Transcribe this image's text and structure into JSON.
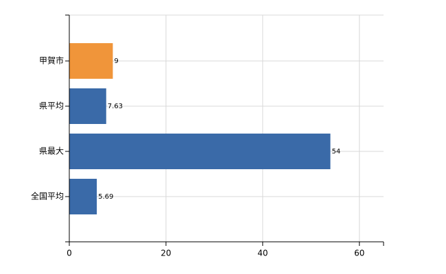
{
  "chart_data": {
    "type": "bar",
    "orientation": "horizontal",
    "categories": [
      "甲賀市",
      "県平均",
      "県最大",
      "全国平均"
    ],
    "values": [
      9,
      7.63,
      54,
      5.69
    ],
    "colors": [
      "#f0953a",
      "#3a6aa8",
      "#3a6aa8",
      "#3a6aa8"
    ],
    "xlim": [
      0,
      65
    ],
    "xticks": [
      0,
      20,
      40,
      60
    ],
    "grid": true
  }
}
